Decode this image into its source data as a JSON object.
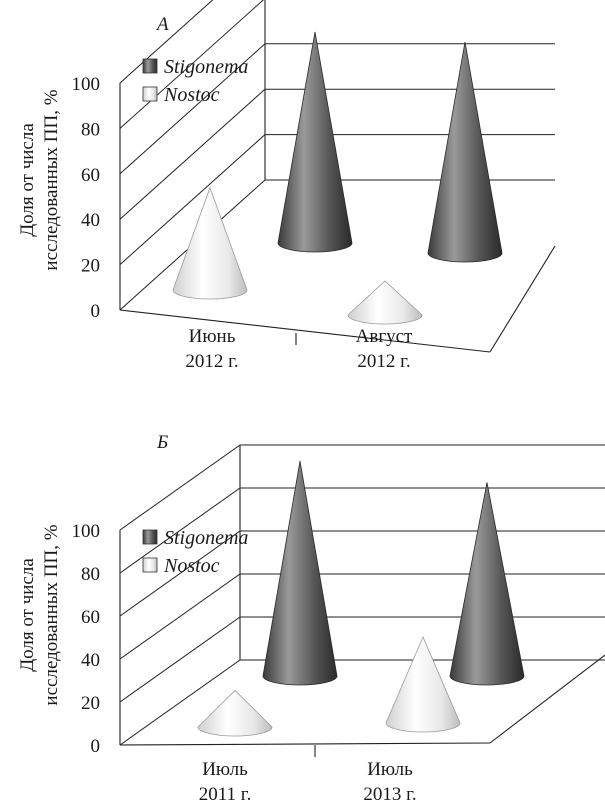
{
  "chart_data": [
    {
      "panel_label": "А",
      "type": "bar",
      "mark": "cone",
      "ylabel_lines": [
        "Доля от числа",
        "исследованных ПП, %"
      ],
      "ylim": [
        0,
        100
      ],
      "yticks": [
        "0",
        "20",
        "40",
        "60",
        "80",
        "100"
      ],
      "categories": [
        [
          "Июнь",
          "2012 г."
        ],
        [
          "Август",
          "2012 г."
        ]
      ],
      "series": [
        {
          "name": "Stigonema",
          "values": [
            93,
            93
          ],
          "color": "#4d4d4d"
        },
        {
          "name": "Nostoc",
          "values": [
            45,
            15
          ],
          "color": "#e6e6e6"
        }
      ],
      "grid": true,
      "legend": "top-left"
    },
    {
      "panel_label": "Б",
      "type": "bar",
      "mark": "cone",
      "ylabel_lines": [
        "Доля от числа",
        "исследованных ПП, %"
      ],
      "ylim": [
        0,
        100
      ],
      "yticks": [
        "0",
        "20",
        "40",
        "60",
        "80",
        "100"
      ],
      "categories": [
        [
          "Июль",
          "2011 г."
        ],
        [
          "Июль",
          "2013 г."
        ]
      ],
      "series": [
        {
          "name": "Stigonema",
          "values": [
            100,
            90
          ],
          "color": "#4d4d4d"
        },
        {
          "name": "Nostoc",
          "values": [
            17,
            40
          ],
          "color": "#e6e6e6"
        }
      ],
      "grid": true,
      "legend": "top-left"
    }
  ]
}
